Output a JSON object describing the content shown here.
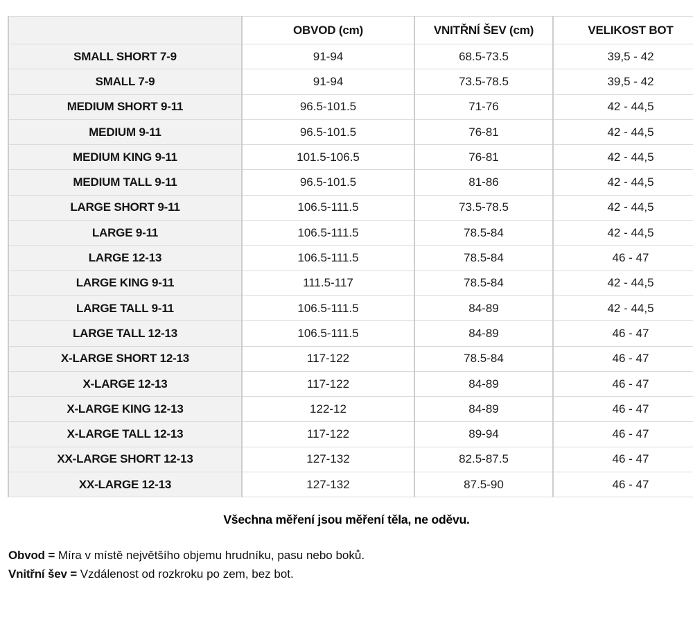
{
  "table": {
    "columns": [
      "",
      "OBVOD (cm)",
      "VNITŘNÍ ŠEV (cm)",
      "VELIKOST BOT"
    ],
    "rows": [
      {
        "label": "SMALL SHORT 7-9",
        "obvod": "91-94",
        "sev": "68.5-73.5",
        "bot": "39,5 - 42"
      },
      {
        "label": "SMALL 7-9",
        "obvod": "91-94",
        "sev": "73.5-78.5",
        "bot": "39,5 - 42"
      },
      {
        "label": "MEDIUM SHORT 9-11",
        "obvod": "96.5-101.5",
        "sev": "71-76",
        "bot": "42 - 44,5"
      },
      {
        "label": "MEDIUM 9-11",
        "obvod": "96.5-101.5",
        "sev": "76-81",
        "bot": "42 - 44,5"
      },
      {
        "label": "MEDIUM KING 9-11",
        "obvod": "101.5-106.5",
        "sev": "76-81",
        "bot": "42 - 44,5"
      },
      {
        "label": "MEDIUM TALL 9-11",
        "obvod": "96.5-101.5",
        "sev": "81-86",
        "bot": "42 - 44,5"
      },
      {
        "label": "LARGE SHORT 9-11",
        "obvod": "106.5-111.5",
        "sev": "73.5-78.5",
        "bot": "42 - 44,5"
      },
      {
        "label": "LARGE 9-11",
        "obvod": "106.5-111.5",
        "sev": "78.5-84",
        "bot": "42 - 44,5"
      },
      {
        "label": "LARGE 12-13",
        "obvod": "106.5-111.5",
        "sev": "78.5-84",
        "bot": "46 - 47"
      },
      {
        "label": "LARGE KING 9-11",
        "obvod": "111.5-117",
        "sev": "78.5-84",
        "bot": "42 - 44,5"
      },
      {
        "label": "LARGE TALL 9-11",
        "obvod": "106.5-111.5",
        "sev": "84-89",
        "bot": "42 - 44,5"
      },
      {
        "label": "LARGE TALL 12-13",
        "obvod": "106.5-111.5",
        "sev": "84-89",
        "bot": "46 - 47"
      },
      {
        "label": "X-LARGE SHORT 12-13",
        "obvod": "117-122",
        "sev": "78.5-84",
        "bot": "46 - 47"
      },
      {
        "label": "X-LARGE 12-13",
        "obvod": "117-122",
        "sev": "84-89",
        "bot": "46 - 47"
      },
      {
        "label": "X-LARGE KING 12-13",
        "obvod": "122-12",
        "sev": "84-89",
        "bot": "46 - 47"
      },
      {
        "label": "X-LARGE TALL 12-13",
        "obvod": "117-122",
        "sev": "89-94",
        "bot": "46 - 47"
      },
      {
        "label": "XX-LARGE SHORT 12-13",
        "obvod": "127-132",
        "sev": "82.5-87.5",
        "bot": "46 - 47"
      },
      {
        "label": "XX-LARGE 12-13",
        "obvod": "127-132",
        "sev": "87.5-90",
        "bot": "46 - 47"
      }
    ]
  },
  "notes": {
    "center": "Všechna měření jsou měření těla, ne oděvu.",
    "definitions": [
      {
        "term": "Obvod =",
        "text": " Míra v místě největšího objemu hrudníku, pasu nebo boků."
      },
      {
        "term": "Vnitřní šev =",
        "text": " Vzdálenost od rozkroku po zem, bez bot."
      }
    ]
  },
  "colors": {
    "row_label_bg": "#f2f2f2",
    "border": "#cdcdcd",
    "text": "#1c1c1c"
  }
}
